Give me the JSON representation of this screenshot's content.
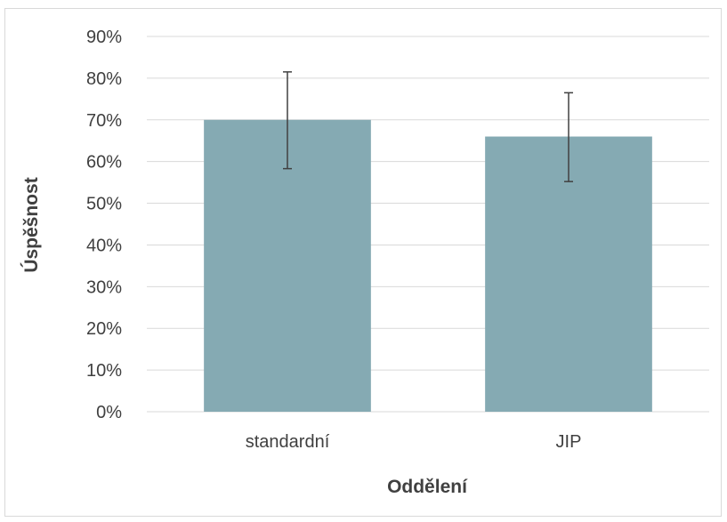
{
  "chart_data": {
    "type": "bar",
    "title": "",
    "xlabel": "Oddělení",
    "ylabel": "Úspěšnost",
    "categories": [
      "standardní",
      "JIP"
    ],
    "values": [
      0.7,
      0.66
    ],
    "error_bars": {
      "upper": [
        0.815,
        0.765
      ],
      "lower": [
        0.583,
        0.552
      ]
    },
    "ylim": [
      0,
      0.9
    ],
    "yticks": [
      0,
      0.1,
      0.2,
      0.3,
      0.4,
      0.5,
      0.6,
      0.7,
      0.8,
      0.9
    ],
    "ytick_labels": [
      "0%",
      "10%",
      "20%",
      "30%",
      "40%",
      "50%",
      "60%",
      "70%",
      "80%",
      "90%"
    ],
    "grid": true,
    "legend": "none",
    "colors": {
      "bar": "#85aab3",
      "gridline": "#d9d9d9",
      "error_bar": "#404040",
      "text": "#404040"
    }
  }
}
